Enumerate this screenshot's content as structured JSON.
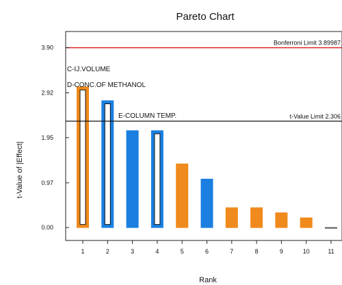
{
  "chart_data": {
    "type": "bar",
    "title": "Pareto Chart",
    "xlabel": "Rank",
    "ylabel": "t-Value of |Effect|",
    "categories": [
      "1",
      "2",
      "3",
      "4",
      "5",
      "6",
      "7",
      "8",
      "9",
      "10",
      "11"
    ],
    "values": [
      3.05,
      2.75,
      2.1,
      2.1,
      1.38,
      1.05,
      0.43,
      0.43,
      0.32,
      0.21,
      0.0
    ],
    "bar_colors": [
      "#f08a1c",
      "#1a7fe0",
      "#1a7fe0",
      "#1a7fe0",
      "#f08a1c",
      "#1a7fe0",
      "#f08a1c",
      "#f08a1c",
      "#f08a1c",
      "#f08a1c",
      "#f08a1c"
    ],
    "bar_outline_only": [
      true,
      true,
      false,
      true,
      false,
      false,
      false,
      false,
      false,
      false,
      false
    ],
    "ylim": [
      -0.28,
      4.25
    ],
    "y_ticks": [
      {
        "value": 0.0,
        "label": "0.00"
      },
      {
        "value": 0.97,
        "label": "0.97"
      },
      {
        "value": 1.95,
        "label": "1.95"
      },
      {
        "value": 2.92,
        "label": "2.92"
      },
      {
        "value": 3.9,
        "label": "3.90"
      }
    ],
    "limits": [
      {
        "label": "Bonferroni Limit 3.89987",
        "value": 3.89987,
        "color": "#e0242b"
      },
      {
        "label": "t-Value Limit 2.306",
        "value": 2.306,
        "color": "#111111"
      }
    ],
    "annotations": [
      {
        "text": "C-IJ.VOLUME",
        "rank": 1
      },
      {
        "text": "D-CONC.OF METHANOL",
        "rank": 1
      },
      {
        "text": "E-COLUMN TEMP.",
        "rank": 3
      }
    ],
    "colors": {
      "positive": "#f08a1c",
      "negative": "#1a7fe0"
    },
    "grid": false
  }
}
